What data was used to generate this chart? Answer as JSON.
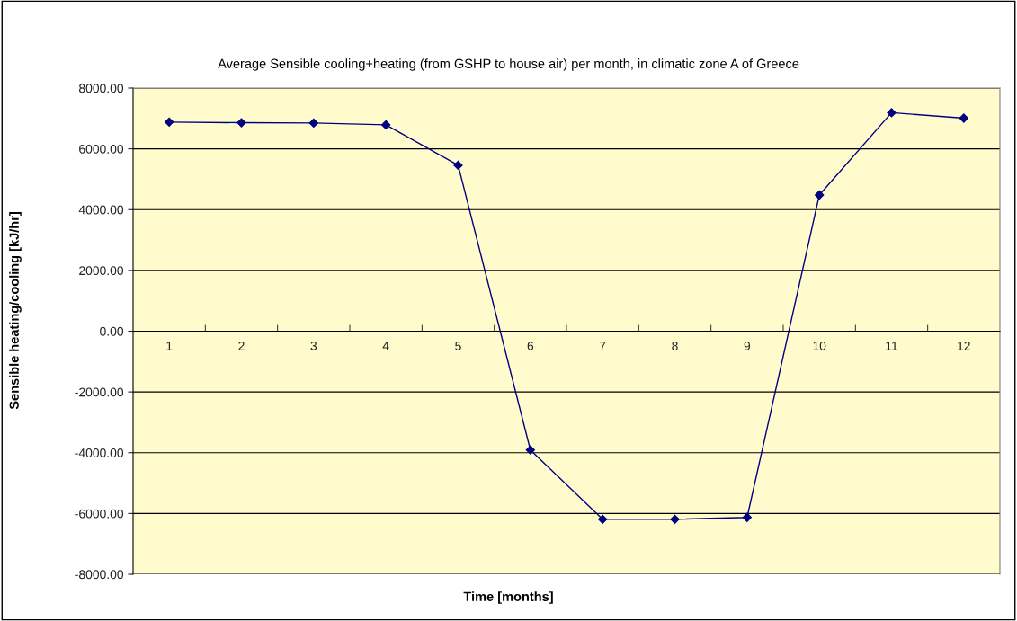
{
  "chart_data": {
    "type": "line",
    "title": "Average Sensible cooling+heating (from GSHP to house air) per month, in climatic zone A of Greece",
    "xlabel": "Time [months]",
    "ylabel": "Sensible heating/cooling [kJ/hr]",
    "categories": [
      "1",
      "2",
      "3",
      "4",
      "5",
      "6",
      "7",
      "8",
      "9",
      "10",
      "11",
      "12"
    ],
    "series": [
      {
        "color": "#000080",
        "values": [
          6880,
          6860,
          6850,
          6790,
          5460,
          -3910,
          -6190,
          -6190,
          -6130,
          4480,
          7190,
          7010
        ]
      }
    ],
    "ylim": [
      -8000,
      8000
    ],
    "yticks": [
      {
        "value": -8000,
        "label": "-8000.00"
      },
      {
        "value": -6000,
        "label": "-6000.00"
      },
      {
        "value": -4000,
        "label": "-4000.00"
      },
      {
        "value": -2000,
        "label": "-2000.00"
      },
      {
        "value": 0,
        "label": "0.00"
      },
      {
        "value": 2000,
        "label": "2000.00"
      },
      {
        "value": 4000,
        "label": "4000.00"
      },
      {
        "value": 6000,
        "label": "6000.00"
      },
      {
        "value": 8000,
        "label": "8000.00"
      }
    ],
    "grid": "y",
    "marker": "diamond",
    "line_style": "solid",
    "legend": false
  }
}
